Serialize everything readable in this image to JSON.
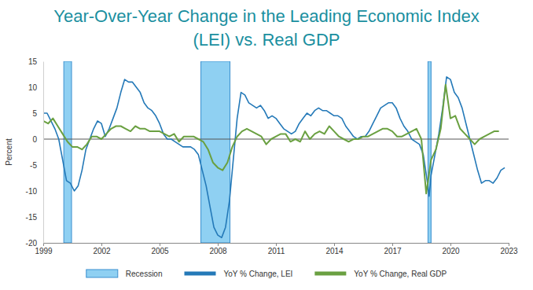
{
  "chart_data": {
    "type": "line",
    "title": "Year-Over-Year Change in the Leading Economic Index (LEI) vs. Real GDP",
    "y_label": "Percent",
    "xlim": [
      1999,
      2023
    ],
    "xticks": [
      1999,
      2002,
      2005,
      2008,
      2011,
      2014,
      2017,
      2020,
      2023
    ],
    "ylim": [
      -20,
      15
    ],
    "yticks": [
      -20,
      -15,
      -10,
      -5,
      0,
      5,
      10,
      15
    ],
    "grid": false,
    "legend": "bottom",
    "series": [
      {
        "name": "Recession",
        "type": "band",
        "color": "#8fd0f2",
        "starts": [
          2000.06,
          2007.13,
          2018.84
        ],
        "ends": [
          2000.46,
          2008.63,
          2019.0
        ]
      },
      {
        "name": "YoY % Change, LEI",
        "type": "line",
        "color": "#2479b8",
        "x": [
          1999.0,
          1999.2,
          1999.4,
          1999.6,
          1999.8,
          2000.0,
          2000.2,
          2000.4,
          2000.6,
          2000.8,
          2001.0,
          2001.2,
          2001.4,
          2001.6,
          2001.8,
          2002.0,
          2002.2,
          2002.4,
          2002.6,
          2002.8,
          2003.0,
          2003.2,
          2003.4,
          2003.6,
          2003.8,
          2004.0,
          2004.2,
          2004.4,
          2004.6,
          2004.8,
          2005.0,
          2005.2,
          2005.4,
          2005.6,
          2005.8,
          2006.0,
          2006.2,
          2006.4,
          2006.6,
          2006.8,
          2007.0,
          2007.2,
          2007.4,
          2007.6,
          2007.8,
          2008.0,
          2008.2,
          2008.4,
          2008.6,
          2008.8,
          2009.0,
          2009.2,
          2009.4,
          2009.6,
          2009.8,
          2010.0,
          2010.2,
          2010.4,
          2010.6,
          2010.8,
          2011.0,
          2011.2,
          2011.4,
          2011.6,
          2011.8,
          2012.0,
          2012.2,
          2012.4,
          2012.6,
          2012.8,
          2013.0,
          2013.2,
          2013.4,
          2013.6,
          2013.8,
          2014.0,
          2014.2,
          2014.4,
          2014.6,
          2014.8,
          2015.0,
          2015.2,
          2015.4,
          2015.6,
          2015.8,
          2016.0,
          2016.2,
          2016.4,
          2016.6,
          2016.8,
          2017.0,
          2017.2,
          2017.4,
          2017.6,
          2017.8,
          2018.0,
          2018.2,
          2018.4,
          2018.6,
          2018.8,
          2018.9,
          2019.0,
          2019.2,
          2019.4,
          2019.6,
          2019.8,
          2020.0,
          2020.2,
          2020.4,
          2020.6,
          2020.8,
          2021.0,
          2021.2,
          2021.4,
          2021.6,
          2021.8,
          2022.0,
          2022.2,
          2022.4,
          2022.6,
          2022.8
        ],
        "values": [
          5,
          5,
          3.5,
          2,
          0,
          -4,
          -8,
          -8.5,
          -10,
          -9,
          -6,
          -2,
          0,
          2,
          3.5,
          3,
          0.5,
          2,
          4,
          6,
          9,
          11.5,
          11,
          11,
          10,
          9,
          7,
          6,
          5.5,
          4.5,
          3,
          1,
          0,
          0,
          -0.5,
          -1,
          -1.5,
          -1.5,
          -1.5,
          -2,
          -3,
          -6,
          -9,
          -13,
          -17,
          -18.5,
          -19,
          -17,
          -12,
          -4,
          4,
          9,
          8.5,
          7,
          6.5,
          6,
          6.5,
          5.5,
          4,
          4.5,
          4,
          3,
          2,
          1.5,
          1,
          1.5,
          3,
          4,
          5,
          4.5,
          5.5,
          6,
          5.5,
          5.5,
          5,
          4.5,
          4.5,
          4,
          2.5,
          1.5,
          0.5,
          0,
          0.5,
          0.5,
          1.5,
          3,
          4.5,
          6,
          6.5,
          7,
          7,
          6,
          4,
          2.5,
          1.5,
          0,
          -0.5,
          -1,
          -3,
          -8,
          -11,
          -7,
          -3,
          1,
          6,
          12,
          11.5,
          9,
          8,
          6,
          3,
          0,
          -3,
          -6,
          -8.5,
          -8,
          -8,
          -8.5,
          -7.5,
          -6,
          -5.5
        ]
      },
      {
        "name": "YoY % Change, Real GDP",
        "type": "line",
        "color": "#6aa041",
        "x": [
          1999.0,
          1999.25,
          1999.5,
          1999.75,
          2000.0,
          2000.25,
          2000.5,
          2000.75,
          2001.0,
          2001.25,
          2001.5,
          2001.75,
          2002.0,
          2002.25,
          2002.5,
          2002.75,
          2003.0,
          2003.25,
          2003.5,
          2003.75,
          2004.0,
          2004.25,
          2004.5,
          2004.75,
          2005.0,
          2005.25,
          2005.5,
          2005.75,
          2006.0,
          2006.25,
          2006.5,
          2006.75,
          2007.0,
          2007.25,
          2007.5,
          2007.75,
          2008.0,
          2008.25,
          2008.5,
          2008.75,
          2009.0,
          2009.25,
          2009.5,
          2009.75,
          2010.0,
          2010.25,
          2010.5,
          2010.75,
          2011.0,
          2011.25,
          2011.5,
          2011.75,
          2012.0,
          2012.25,
          2012.5,
          2012.75,
          2013.0,
          2013.25,
          2013.5,
          2013.75,
          2014.0,
          2014.25,
          2014.5,
          2014.75,
          2015.0,
          2015.25,
          2015.5,
          2015.75,
          2016.0,
          2016.25,
          2016.5,
          2016.75,
          2017.0,
          2017.25,
          2017.5,
          2017.75,
          2018.0,
          2018.25,
          2018.5,
          2018.75,
          2019.0,
          2019.25,
          2019.5,
          2019.75,
          2020.0,
          2020.25,
          2020.5,
          2020.75,
          2021.0,
          2021.25,
          2021.5,
          2021.75,
          2022.0,
          2022.25,
          2022.5
        ],
        "values": [
          3.5,
          3,
          4,
          2.5,
          1,
          -0.5,
          -1.5,
          -1.5,
          -2,
          -1,
          0.5,
          0.5,
          0,
          1,
          2,
          2.5,
          2.5,
          2,
          1.5,
          2.5,
          2,
          2,
          1.5,
          1.5,
          1.5,
          1,
          0.5,
          1,
          -0.5,
          0.5,
          0.5,
          0.5,
          0,
          -0.5,
          -2,
          -4.5,
          -5.5,
          -6,
          -4.5,
          -1.5,
          0.5,
          1.5,
          2,
          1.5,
          1,
          0.5,
          -1,
          0,
          0.5,
          1,
          1,
          -0.5,
          0,
          -0.5,
          1.5,
          0,
          1,
          1.5,
          1,
          2.5,
          1.5,
          0.5,
          0,
          -0.5,
          0,
          0,
          0.5,
          0.5,
          1,
          1.5,
          2,
          2,
          1.5,
          0.5,
          0.5,
          1,
          1.5,
          2,
          0,
          -10.5,
          -4,
          -2,
          2,
          10.5,
          4,
          4.5,
          2,
          1,
          0,
          -1,
          0,
          0.5,
          1,
          1.5,
          1.5
        ]
      }
    ]
  }
}
